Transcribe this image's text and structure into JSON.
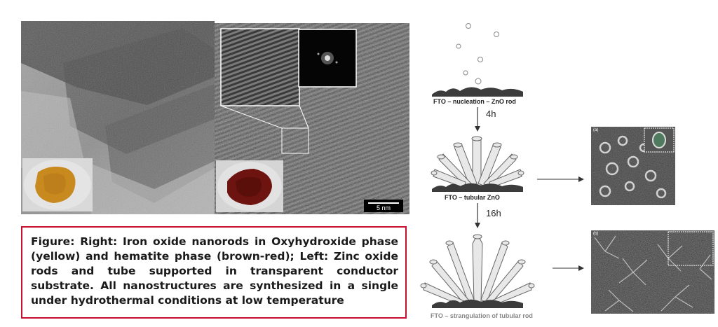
{
  "caption": "Figure: Right: Iron oxide nanorods in Oxyhydroxide phase (yellow) and hematite phase (brown-red); Left: Zinc oxide rods and tube supported in transparent conductor substrate. All nanostructures are synthesized in a single under hydrothermal conditions at low temperature",
  "tem": {
    "scale_label": "5 nm"
  },
  "diagram": {
    "stage1_label": "FTO – nucleation – ZnO rod",
    "time1": "4h",
    "stage2_label": "FTO – tubular ZnO",
    "time2": "16h",
    "stage3_label": "FTO – strangulation of tubular rod"
  },
  "sem": {
    "panel_a": "(a)",
    "panel_b": "(b)"
  },
  "colors": {
    "caption_border": "#c8102e",
    "oxyhydroxide": "#c8891e",
    "hematite": "#6e1410"
  }
}
